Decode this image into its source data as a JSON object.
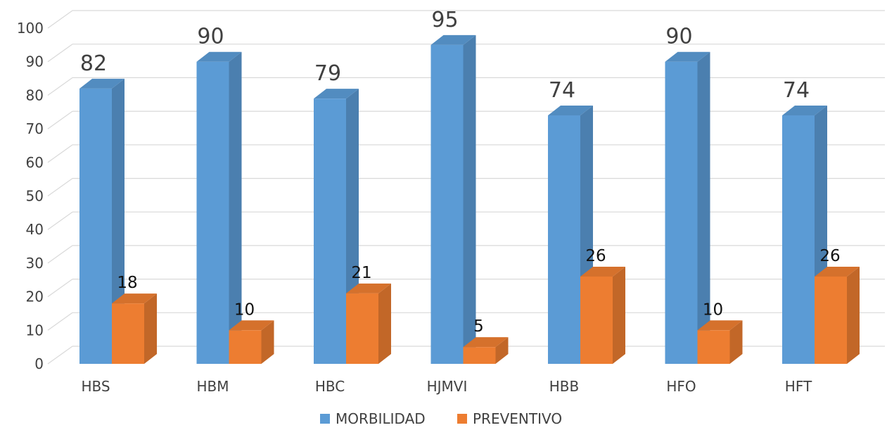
{
  "chart_data": {
    "type": "bar",
    "categories": [
      "HBS",
      "HBM",
      "HBC",
      "HJMVI",
      "HBB",
      "HFO",
      "HFT"
    ],
    "series": [
      {
        "name": "MORBILIDAD",
        "values": [
          82,
          90,
          79,
          95,
          74,
          90,
          74
        ],
        "color": "#5B9BD5"
      },
      {
        "name": "PREVENTIVO",
        "values": [
          18,
          10,
          21,
          5,
          26,
          10,
          26
        ],
        "color": "#ED7D31"
      }
    ],
    "y_ticks": [
      "0",
      "10",
      "20",
      "30",
      "40",
      "50",
      "60",
      "70",
      "80",
      "90",
      "100"
    ],
    "ylim": [
      0,
      100
    ],
    "grid": true,
    "legend_position": "bottom",
    "title": "",
    "xlabel": "",
    "ylabel": ""
  }
}
